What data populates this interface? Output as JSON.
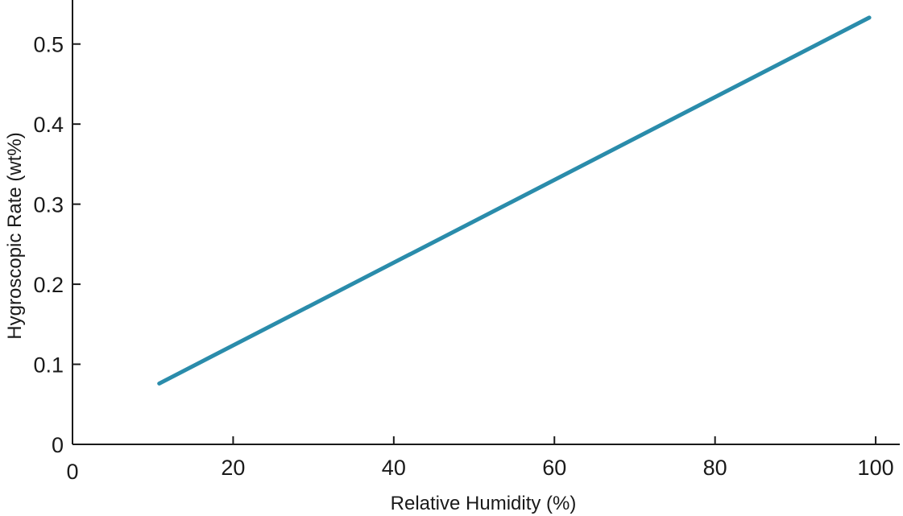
{
  "chart_data": {
    "type": "line",
    "title": "",
    "xlabel": "Relative Humidity (%)",
    "ylabel": "Hygroscopic Rate (wt%)",
    "xlim": [
      0,
      103
    ],
    "ylim": [
      0,
      0.555
    ],
    "xticks": [
      0,
      20,
      40,
      60,
      80,
      100
    ],
    "yticks": [
      0,
      0.1,
      0.2,
      0.3,
      0.4,
      0.5
    ],
    "xtick_labels": [
      "0",
      "20",
      "40",
      "60",
      "80",
      "100"
    ],
    "ytick_labels": [
      "0",
      "0.1",
      "0.2",
      "0.3",
      "0.4",
      "0.5"
    ],
    "grid": false,
    "series": [
      {
        "color": "#2a8cab",
        "x": [
          10.8,
          99.2
        ],
        "y": [
          0.076,
          0.533
        ]
      }
    ]
  }
}
